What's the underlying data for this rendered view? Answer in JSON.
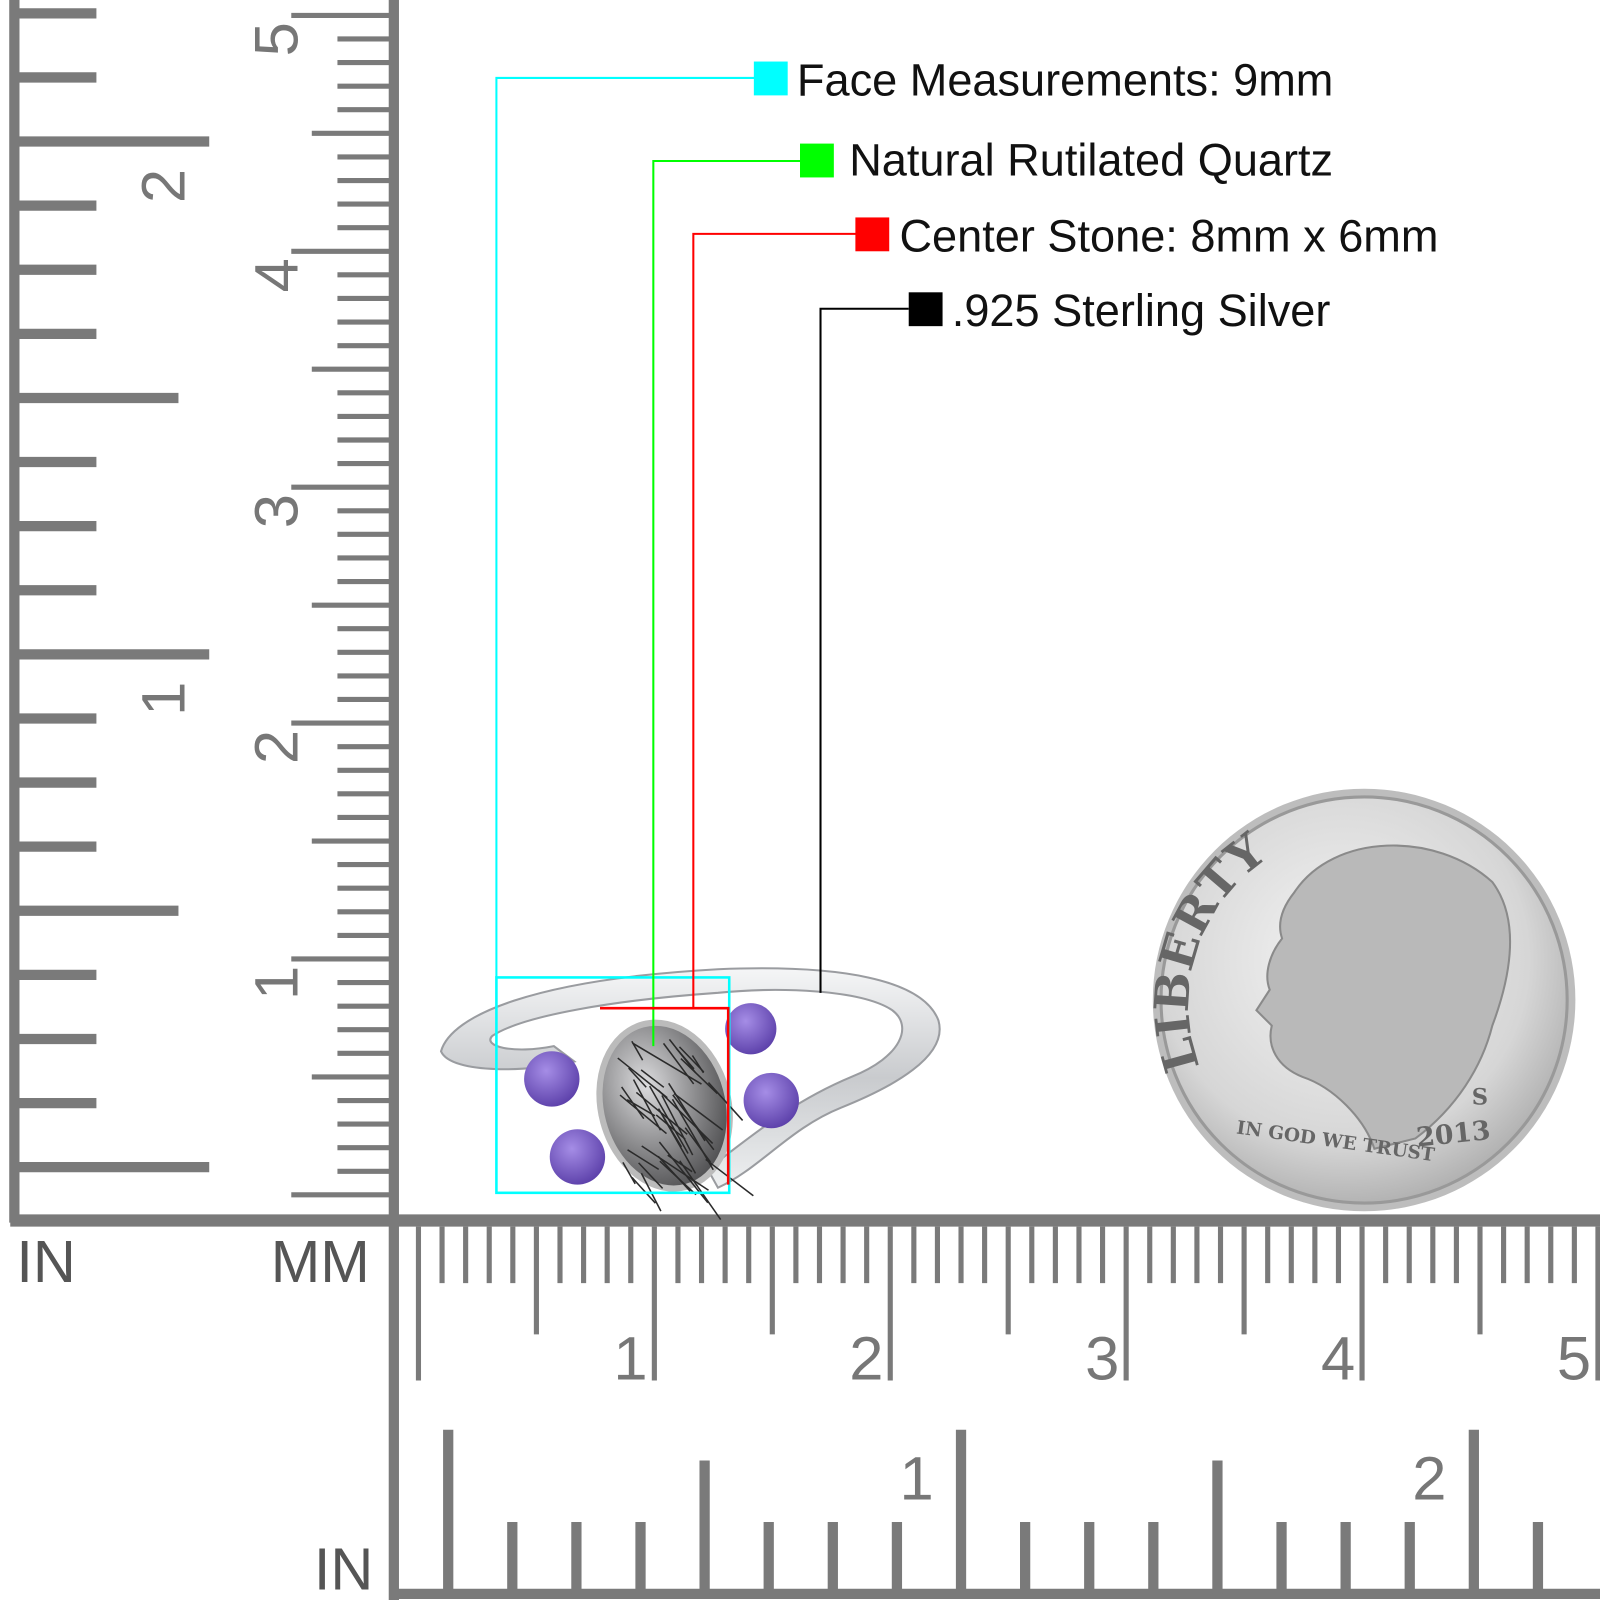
{
  "legend": [
    {
      "label": "Face Measurements: 9mm",
      "color": "#00FFFF"
    },
    {
      "label": "Natural Rutilated Quartz",
      "color": "#00FF00"
    },
    {
      "label": "Center Stone: 8mm x 6mm",
      "color": "#FF0000"
    },
    {
      "label": ".925 Sterling Silver",
      "color": "#000000"
    }
  ],
  "rulers": {
    "left_unit_in": "IN",
    "left_unit_mm": "MM",
    "bottom_unit_in": "IN",
    "vertical_inch_labels": [
      "1",
      "2"
    ],
    "vertical_cm_labels": [
      "1",
      "2",
      "3",
      "4",
      "5"
    ],
    "horizontal_cm_labels": [
      "1",
      "2",
      "3",
      "4",
      "5"
    ],
    "horizontal_inch_labels": [
      "1",
      "2"
    ],
    "color": "#7a7a7a"
  },
  "coin": {
    "motto_top": "LIBERTY",
    "motto_bottom": "IN GOD WE TRUST",
    "year": "2013",
    "mint_mark": "S"
  },
  "ring": {
    "metal_color": "#d8dadd",
    "side_stone_color": "#7a5cc8",
    "center_stone_color": "#8a8a8c"
  }
}
